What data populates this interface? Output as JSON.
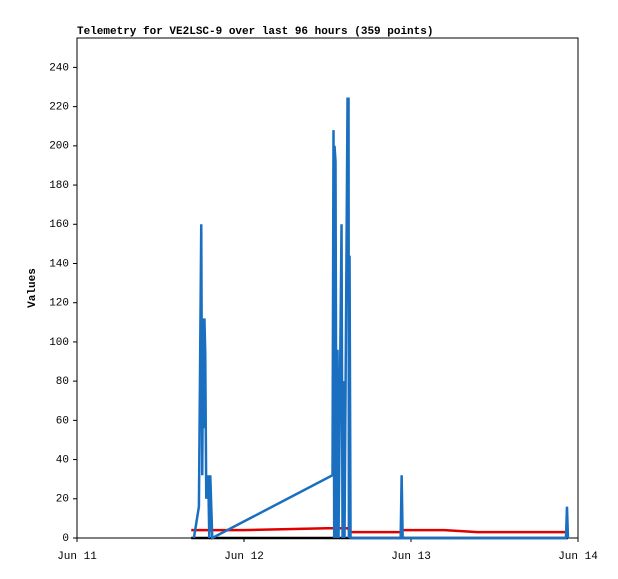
{
  "chart_data": {
    "type": "line",
    "title": "Telemetry for VE2LSC-9 over last 96 hours (359 points)",
    "y_label": "Values",
    "xlim": [
      0,
      3
    ],
    "xticks": [
      {
        "value": 0,
        "label": "Jun 11"
      },
      {
        "value": 1,
        "label": "Jun 12"
      },
      {
        "value": 2,
        "label": "Jun 13"
      },
      {
        "value": 3,
        "label": "Jun 14"
      }
    ],
    "ylim": [
      0,
      255
    ],
    "yticks": [
      0,
      20,
      40,
      60,
      80,
      100,
      120,
      140,
      160,
      180,
      200,
      220,
      240
    ],
    "series": [
      {
        "color": "#000000",
        "x": [
          0.684,
          2.94
        ],
        "values": [
          0,
          0
        ]
      },
      {
        "color": "#e00000",
        "x": [
          0.684,
          1.0,
          1.5,
          1.62,
          1.64,
          1.944,
          1.95,
          2.2,
          2.4,
          2.94
        ],
        "values": [
          4,
          4,
          5,
          5,
          3,
          3,
          4,
          4,
          3,
          3
        ]
      },
      {
        "color": "#1a6fc0",
        "x": [
          0.7,
          0.73,
          0.744,
          0.75,
          0.756,
          0.76,
          0.763,
          0.768,
          0.774,
          0.786,
          0.792,
          0.798,
          0.804,
          0.81,
          1.53,
          1.536,
          1.54,
          1.542,
          1.548,
          1.554,
          1.56,
          1.566,
          1.584,
          1.59,
          1.596,
          1.602,
          1.62,
          1.626,
          1.628,
          1.632,
          1.638,
          1.938,
          1.944,
          1.95,
          2.928,
          2.934,
          2.94
        ],
        "values": [
          0,
          16,
          160,
          32,
          112,
          56,
          112,
          94,
          20,
          32,
          0,
          32,
          16,
          0,
          32,
          208,
          0,
          200,
          192,
          0,
          96,
          0,
          160,
          0,
          80,
          0,
          224,
          224,
          0,
          144,
          0,
          0,
          32,
          0,
          0,
          16,
          0
        ]
      }
    ]
  }
}
